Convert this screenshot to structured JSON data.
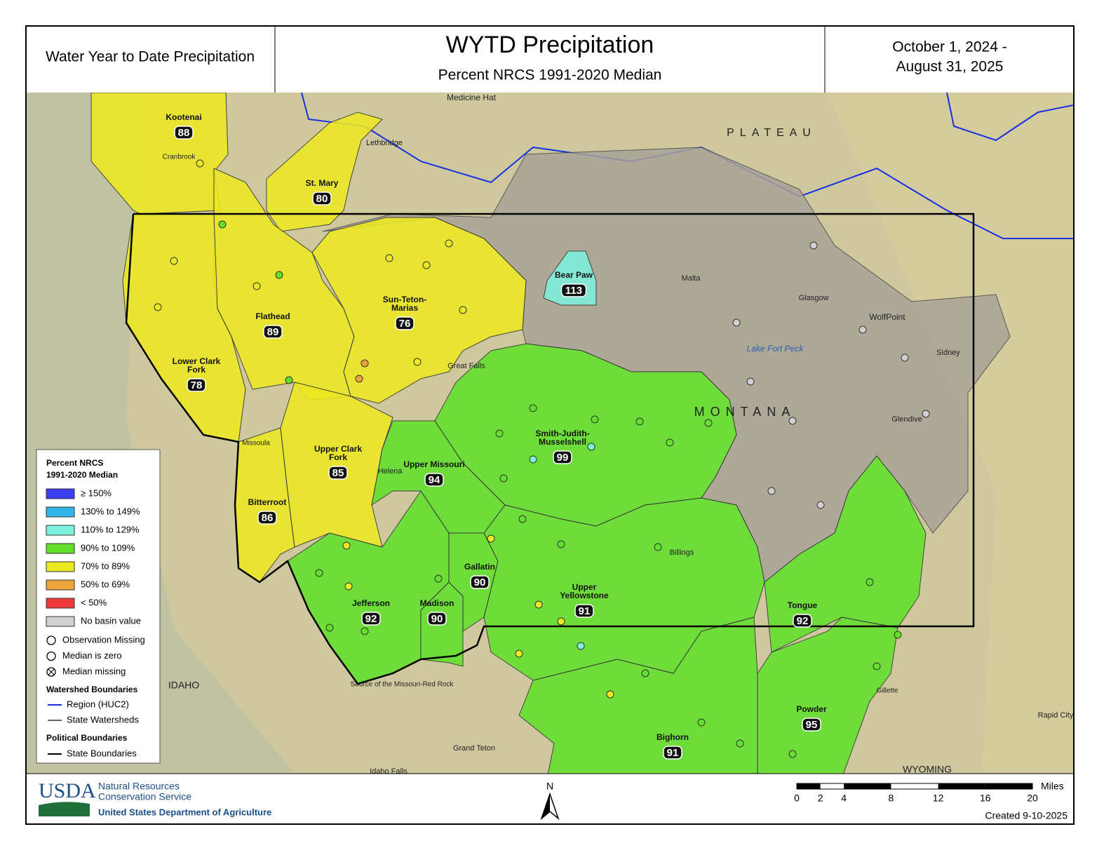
{
  "header": {
    "left": "Water Year to Date Precipitation",
    "title": "WYTD Precipitation",
    "subtitle": "Percent NRCS 1991-2020 Median",
    "date_range": [
      "October 1, 2024 -",
      "August 31, 2025"
    ]
  },
  "basins": [
    {
      "name": [
        "Kootenai"
      ],
      "value": "88",
      "class": 4
    },
    {
      "name": [
        "St. Mary"
      ],
      "value": "80",
      "class": 4
    },
    {
      "name": [
        "Flathead"
      ],
      "value": "89",
      "class": 4
    },
    {
      "name": [
        "Lower Clark",
        "Fork"
      ],
      "value": "78",
      "class": 4
    },
    {
      "name": [
        "Bitterroot"
      ],
      "value": "86",
      "class": 4
    },
    {
      "name": [
        "Upper Clark",
        "Fork"
      ],
      "value": "85",
      "class": 4
    },
    {
      "name": [
        "Sun-Teton-",
        "Marias"
      ],
      "value": "76",
      "class": 4
    },
    {
      "name": [
        "Bear Paw"
      ],
      "value": "113",
      "class": 2
    },
    {
      "name": [
        "Upper Missouri"
      ],
      "value": "94",
      "class": 3
    },
    {
      "name": [
        "Smith-Judith-",
        "Musselshell"
      ],
      "value": "99",
      "class": 3
    },
    {
      "name": [
        "Jefferson"
      ],
      "value": "92",
      "class": 3
    },
    {
      "name": [
        "Madison"
      ],
      "value": "90",
      "class": 3
    },
    {
      "name": [
        "Gallatin"
      ],
      "value": "90",
      "class": 3
    },
    {
      "name": [
        "Upper",
        "Yellowstone"
      ],
      "value": "91",
      "class": 3
    },
    {
      "name": [
        "Bighorn"
      ],
      "value": "91",
      "class": 3
    },
    {
      "name": [
        "Powder"
      ],
      "value": "95",
      "class": 3
    },
    {
      "name": [
        "Tongue"
      ],
      "value": "92",
      "class": 3
    }
  ],
  "legend": {
    "title": [
      "Percent NRCS",
      "1991-2020 Median"
    ],
    "classes": [
      {
        "label": "≥ 150%",
        "color": "#3a3ef0"
      },
      {
        "label": "130% to 149%",
        "color": "#33b6e8"
      },
      {
        "label": "110% to 129%",
        "color": "#7ff0dc"
      },
      {
        "label": "90% to 109%",
        "color": "#62e02c"
      },
      {
        "label": "70% to 89%",
        "color": "#ece822"
      },
      {
        "label": "50% to 69%",
        "color": "#eaa63a"
      },
      {
        "label": "< 50%",
        "color": "#ee3a3a"
      },
      {
        "label": "No basin value",
        "color": "#d0d0d0"
      }
    ],
    "symbols": [
      "Observation Missing",
      "Median is zero",
      "Median missing"
    ],
    "watershed_title": "Watershed Boundaries",
    "watershed_items": [
      "Region (HUC2)",
      "State Watersheds"
    ],
    "political_title": "Political Boundaries",
    "political_items": [
      "State Boundaries"
    ]
  },
  "places": [
    "Medicine Hat",
    "Lethbridge",
    "Cranbrook",
    "Malta",
    "Glasgow",
    "WolfPoint",
    "Sidney",
    "Glendive",
    "Billings",
    "Great Falls",
    "Helena",
    "Missoula",
    "Lake Fort Peck",
    "MONTANA",
    "PLATEAU",
    "IDAHO",
    "WYOMING",
    "Gillette",
    "Rapid City",
    "Grand Teton",
    "Idaho Falls",
    "Source of the Missouri-Red Rock"
  ],
  "footer": {
    "usda": "USDA",
    "agency": [
      "Natural Resources",
      "Conservation Service"
    ],
    "department": "United States Department of Agriculture",
    "north": "N",
    "scale_ticks": [
      0,
      2,
      4,
      8,
      12,
      16,
      20
    ],
    "scale_unit": "Miles",
    "created": "Created 9-10-2025"
  }
}
